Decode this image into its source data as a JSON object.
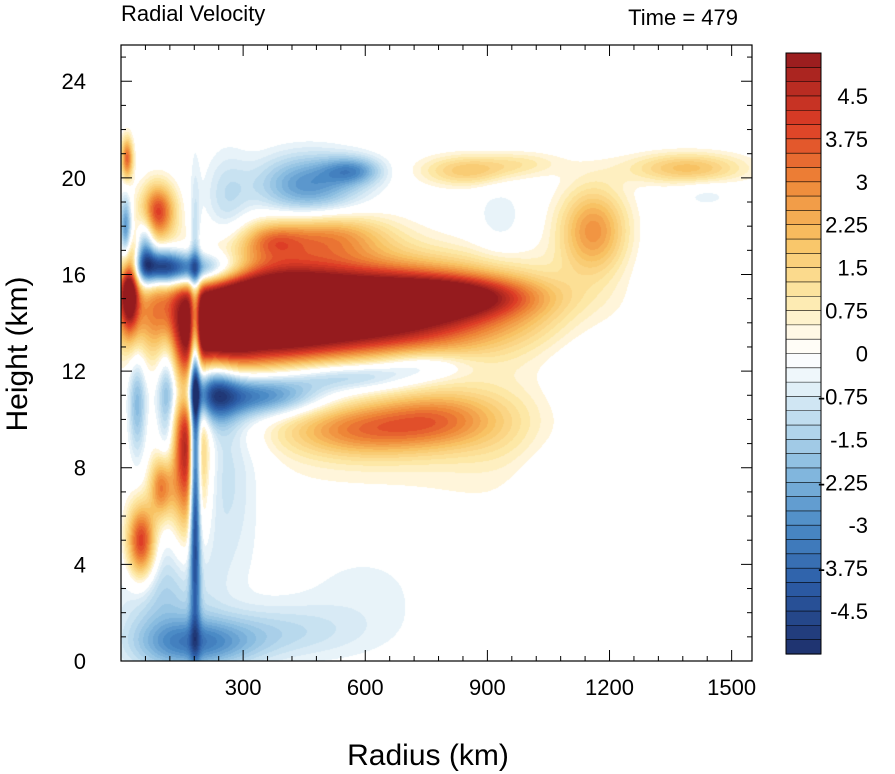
{
  "chart_data": {
    "type": "heatmap",
    "title": "Radial Velocity",
    "subtitle": "Time = 479",
    "xlabel": "Radius (km)",
    "ylabel": "Height (km)",
    "xlim": [
      0,
      1550
    ],
    "ylim": [
      0,
      25.5
    ],
    "xticks": [
      300,
      600,
      900,
      1200,
      1500
    ],
    "yticks": [
      0,
      4,
      8,
      12,
      16,
      20,
      24
    ],
    "colorbar": {
      "min": -5.25,
      "max": 5.25,
      "step": 0.25,
      "labels": [
        "4.5",
        "3.75",
        "3",
        "2.25",
        "1.5",
        "0.75",
        "0",
        "-0.75",
        "-1.5",
        "-2.25",
        "-3",
        "-3.75",
        "-4.5"
      ],
      "label_values": [
        4.5,
        3.75,
        3,
        2.25,
        1.5,
        0.75,
        0,
        -0.75,
        -1.5,
        -2.25,
        -3,
        -3.75,
        -4.5
      ],
      "colormap": [
        {
          "v": -5.25,
          "c": "#1d2f6b"
        },
        {
          "v": -4.0,
          "c": "#2c5ea8"
        },
        {
          "v": -3.0,
          "c": "#4b8bc6"
        },
        {
          "v": -2.0,
          "c": "#89bce0"
        },
        {
          "v": -1.0,
          "c": "#c8e2f1"
        },
        {
          "v": -0.4,
          "c": "#eef6fb"
        },
        {
          "v": 0.0,
          "c": "#ffffff"
        },
        {
          "v": 0.4,
          "c": "#fff8e4"
        },
        {
          "v": 1.0,
          "c": "#fde8a6"
        },
        {
          "v": 2.0,
          "c": "#f8c263"
        },
        {
          "v": 3.0,
          "c": "#ee8637"
        },
        {
          "v": 4.0,
          "c": "#dd3d26"
        },
        {
          "v": 5.25,
          "c": "#951b1e"
        }
      ]
    },
    "features": [
      {
        "r": 520,
        "z": 14.6,
        "sr": 300,
        "sz": 1.3,
        "v": 8.0
      },
      {
        "r": 320,
        "z": 14.2,
        "sr": 130,
        "sz": 1.6,
        "v": 3.0
      },
      {
        "r": 810,
        "z": 15.1,
        "sr": 140,
        "sz": 0.55,
        "v": 3.0
      },
      {
        "r": 230,
        "z": 13.0,
        "sr": 60,
        "sz": 0.9,
        "v": 2.5
      },
      {
        "r": 165,
        "z": 9.0,
        "sr": 32,
        "sz": 2.6,
        "v": 5.5
      },
      {
        "r": 100,
        "z": 7.2,
        "sr": 20,
        "sz": 0.9,
        "v": 3.2
      },
      {
        "r": 50,
        "z": 4.9,
        "sr": 25,
        "sz": 1.1,
        "v": 4.5
      },
      {
        "r": 20,
        "z": 15.5,
        "sr": 16,
        "sz": 1.2,
        "v": 5.5
      },
      {
        "r": 90,
        "z": 18.6,
        "sr": 30,
        "sz": 0.8,
        "v": 4.0
      },
      {
        "r": 15,
        "z": 20.8,
        "sr": 10,
        "sz": 0.6,
        "v": 3.5
      },
      {
        "r": 500,
        "z": 17.6,
        "sr": 110,
        "sz": 0.7,
        "v": 2.5
      },
      {
        "r": 370,
        "z": 17.4,
        "sr": 50,
        "sz": 0.5,
        "v": 1.5
      },
      {
        "r": 600,
        "z": 9.6,
        "sr": 140,
        "sz": 0.8,
        "v": 2.8
      },
      {
        "r": 780,
        "z": 10.1,
        "sr": 100,
        "sz": 0.8,
        "v": 1.8
      },
      {
        "r": 930,
        "z": 9.8,
        "sr": 120,
        "sz": 1.4,
        "v": 0.8
      },
      {
        "r": 1160,
        "z": 17.8,
        "sr": 60,
        "sz": 1.3,
        "v": 2.8
      },
      {
        "r": 1390,
        "z": 20.4,
        "sr": 100,
        "sz": 0.45,
        "v": 2.0
      },
      {
        "r": 850,
        "z": 20.3,
        "sr": 80,
        "sz": 0.45,
        "v": 1.8
      },
      {
        "r": 990,
        "z": 20.6,
        "sr": 70,
        "sz": 0.35,
        "v": 0.8
      },
      {
        "r": 620,
        "z": 8.5,
        "sr": 300,
        "sz": 2.5,
        "v": 0.4
      },
      {
        "r": 1100,
        "z": 5.0,
        "sr": 200,
        "sz": 4.0,
        "v": 0.15
      },
      {
        "r": 182,
        "z": 9.0,
        "sr": 9,
        "sz": 4.8,
        "v": -7.0
      },
      {
        "r": 165,
        "z": 16.2,
        "sr": 90,
        "sz": 0.5,
        "v": -5.0
      },
      {
        "r": 90,
        "z": 16.4,
        "sr": 40,
        "sz": 0.5,
        "v": -2.5
      },
      {
        "r": 12,
        "z": 17.8,
        "sr": 10,
        "sz": 0.9,
        "v": -3.5
      },
      {
        "r": 60,
        "z": 17.0,
        "sr": 15,
        "sz": 1.0,
        "v": -2.5
      },
      {
        "r": 115,
        "z": 10.8,
        "sr": 17,
        "sz": 2.4,
        "v": -2.4
      },
      {
        "r": 40,
        "z": 10.6,
        "sr": 15,
        "sz": 1.5,
        "v": -2.0
      },
      {
        "r": 220,
        "z": 11.2,
        "sr": 45,
        "sz": 1.0,
        "v": -3.5
      },
      {
        "r": 340,
        "z": 11.0,
        "sr": 110,
        "sz": 0.6,
        "v": -3.5
      },
      {
        "r": 560,
        "z": 11.8,
        "sr": 120,
        "sz": 0.45,
        "v": -2.0
      },
      {
        "r": 740,
        "z": 12.3,
        "sr": 80,
        "sz": 0.4,
        "v": -1.2
      },
      {
        "r": 250,
        "z": 8.0,
        "sr": 70,
        "sz": 3.0,
        "v": -1.2
      },
      {
        "r": 110,
        "z": 2.5,
        "sr": 80,
        "sz": 2.0,
        "v": -1.5
      },
      {
        "r": 190,
        "z": 0.7,
        "sr": 100,
        "sz": 0.7,
        "v": -2.5
      },
      {
        "r": 380,
        "z": 1.2,
        "sr": 140,
        "sz": 0.8,
        "v": -1.0
      },
      {
        "r": 600,
        "z": 3.0,
        "sr": 150,
        "sz": 2.0,
        "v": -0.5
      },
      {
        "r": 260,
        "z": 19.0,
        "sr": 40,
        "sz": 1.5,
        "v": -1.0
      },
      {
        "r": 460,
        "z": 19.7,
        "sr": 90,
        "sz": 0.9,
        "v": -2.8
      },
      {
        "r": 570,
        "z": 20.3,
        "sr": 50,
        "sz": 0.4,
        "v": -2.2
      },
      {
        "r": 930,
        "z": 18.3,
        "sr": 45,
        "sz": 1.1,
        "v": -0.6
      },
      {
        "r": 1050,
        "z": 7.0,
        "sr": 60,
        "sz": 2.0,
        "v": -0.5
      },
      {
        "r": 1350,
        "z": 15.0,
        "sr": 80,
        "sz": 2.0,
        "v": -0.25
      },
      {
        "r": 1140,
        "z": 13.0,
        "sr": 80,
        "sz": 2.5,
        "v": -0.4
      },
      {
        "r": 1440,
        "z": 19.3,
        "sr": 50,
        "sz": 0.4,
        "v": -0.5
      }
    ]
  }
}
